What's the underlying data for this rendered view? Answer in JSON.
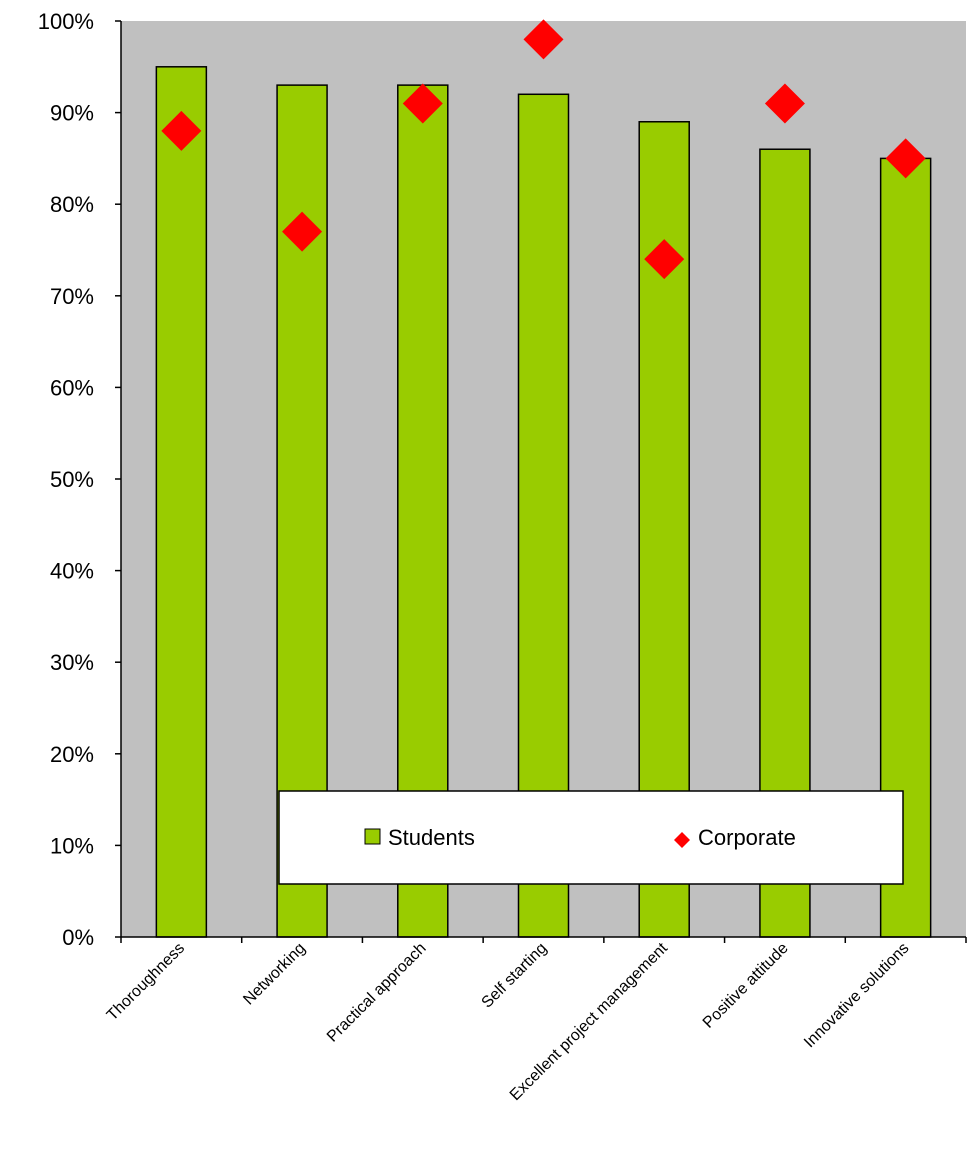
{
  "chart_data": {
    "type": "bar",
    "categories": [
      "Thoroughness",
      "Networking",
      "Practical approach",
      "Self starting",
      "Excellent project management",
      "Positive attitude",
      "Innovative solutions"
    ],
    "series": [
      {
        "name": "Students",
        "type": "bar",
        "color": "#99cc00",
        "values": [
          95,
          93,
          93,
          92,
          89,
          86,
          85
        ]
      },
      {
        "name": "Corporate",
        "type": "scatter",
        "marker": "diamond",
        "color": "#ff0000",
        "values": [
          88,
          77,
          91,
          98,
          74,
          91,
          85
        ]
      }
    ],
    "yticks": [
      "0%",
      "10%",
      "20%",
      "30%",
      "40%",
      "50%",
      "60%",
      "70%",
      "80%",
      "90%",
      "100%"
    ],
    "ylim": [
      0,
      100
    ],
    "title": "",
    "xlabel": "",
    "ylabel": "",
    "plot_background": "#c0c0c0",
    "grid": false,
    "legend_position": "bottom-center"
  }
}
